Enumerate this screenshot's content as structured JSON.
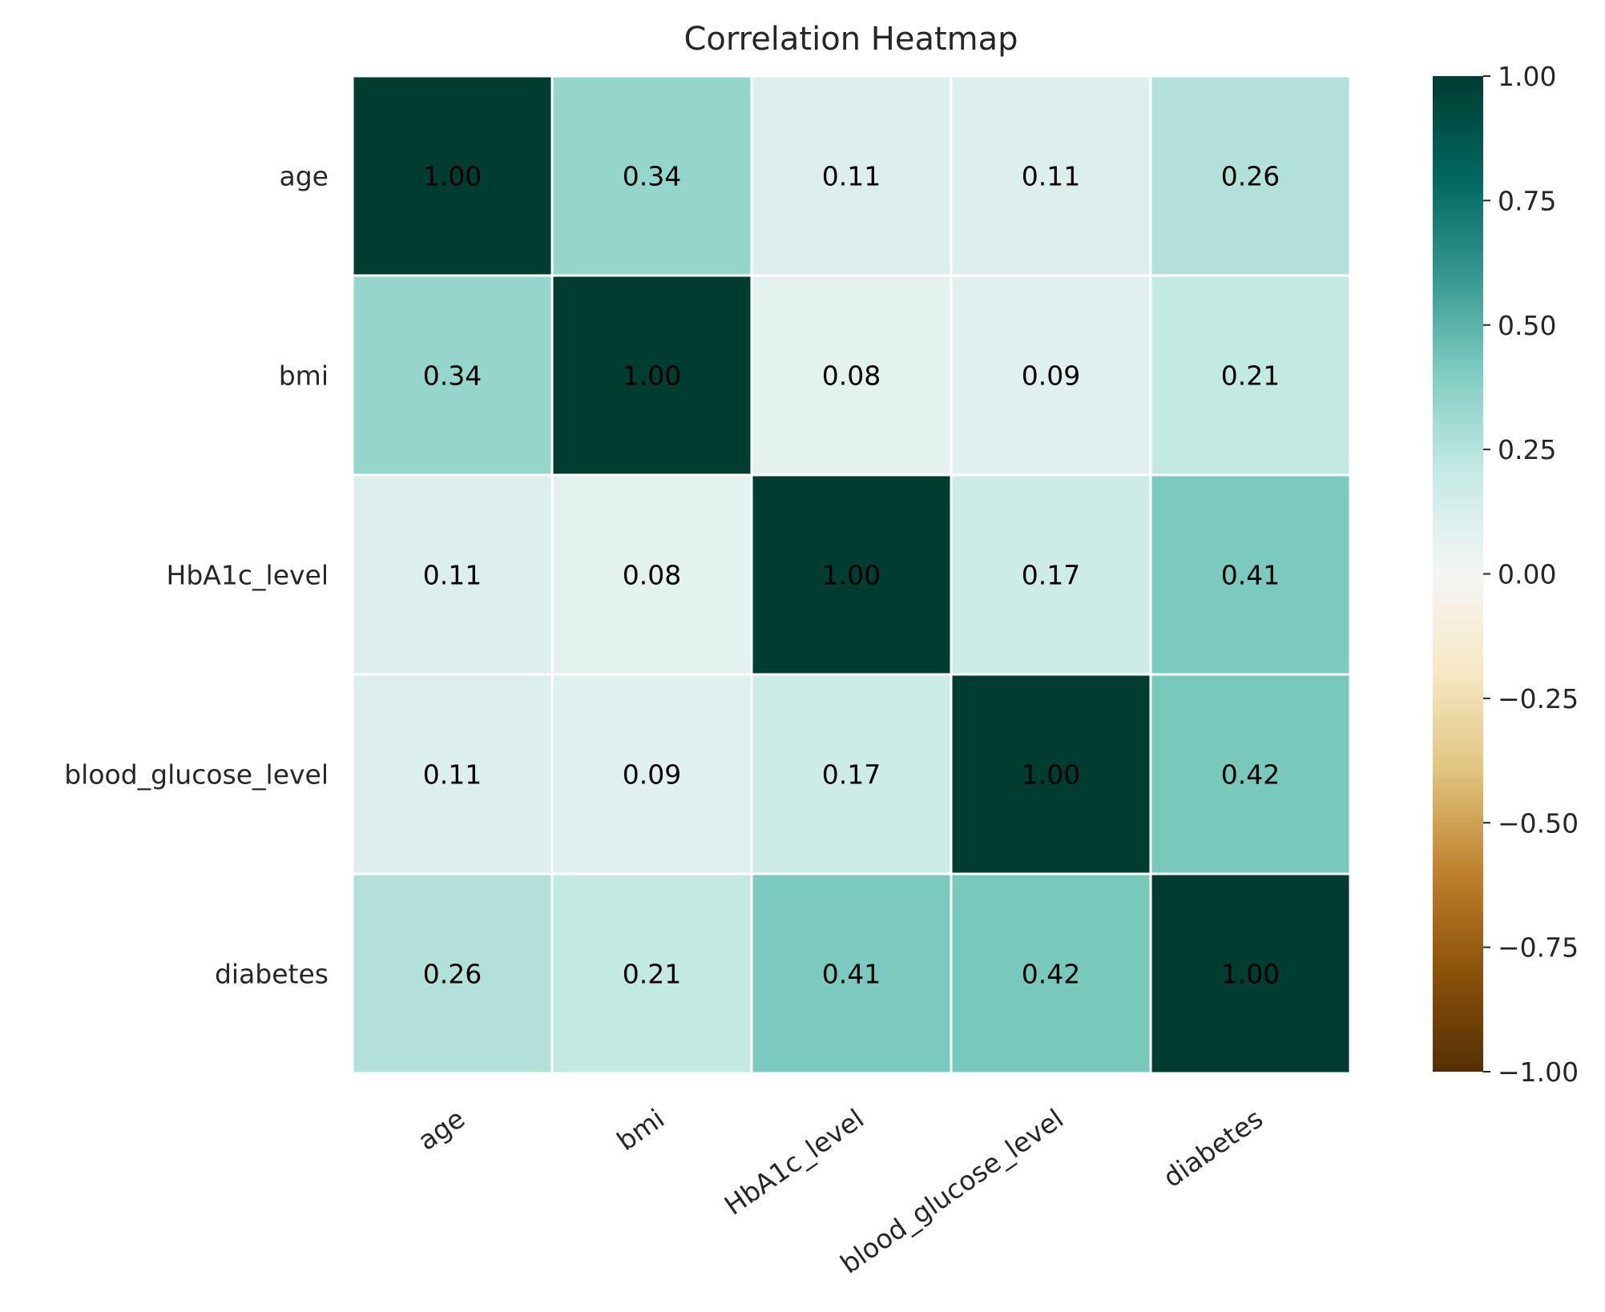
{
  "chart_data": {
    "type": "heatmap",
    "title": "Correlation Heatmap",
    "xlabel": "",
    "ylabel": "",
    "x_categories": [
      "age",
      "bmi",
      "HbA1c_level",
      "blood_glucose_level",
      "diabetes"
    ],
    "y_categories": [
      "age",
      "bmi",
      "HbA1c_level",
      "blood_glucose_level",
      "diabetes"
    ],
    "values": [
      [
        1.0,
        0.34,
        0.11,
        0.11,
        0.26
      ],
      [
        0.34,
        1.0,
        0.08,
        0.09,
        0.21
      ],
      [
        0.11,
        0.08,
        1.0,
        0.17,
        0.41
      ],
      [
        0.11,
        0.09,
        0.17,
        1.0,
        0.42
      ],
      [
        0.26,
        0.21,
        0.41,
        0.42,
        1.0
      ]
    ],
    "value_format": "0.00",
    "colorbar": {
      "range": [
        -1.0,
        1.0
      ],
      "ticks": [
        1.0,
        0.75,
        0.5,
        0.25,
        0.0,
        -0.25,
        -0.5,
        -0.75,
        -1.0
      ],
      "tick_labels": [
        "1.00",
        "0.75",
        "0.50",
        "0.25",
        "0.00",
        "−0.25",
        "−0.50",
        "−0.75",
        "−1.00"
      ],
      "colormap": "BrBG",
      "colormap_stops": [
        "#543005",
        "#8c510a",
        "#bf812d",
        "#dfc27d",
        "#f6e8c3",
        "#f5f5f5",
        "#c7eae5",
        "#80cdc1",
        "#35978f",
        "#01665e",
        "#003c30"
      ]
    },
    "grid": false,
    "cell_border_color": "#ffffff"
  }
}
